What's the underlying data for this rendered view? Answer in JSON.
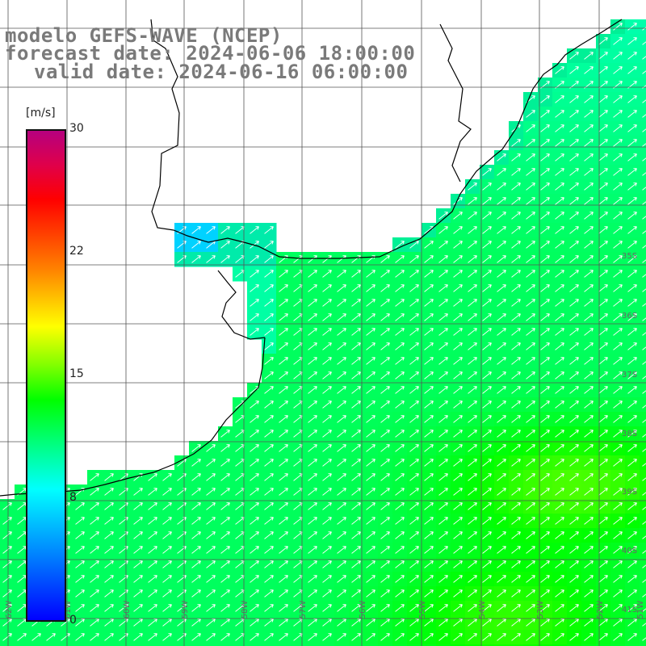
{
  "titles": {
    "line1": "modelo GEFS-WAVE (NCEP)",
    "line2": "forecast date: 2024-06-06 18:00:00",
    "line3": "valid date: 2024-06-16 06:00:00"
  },
  "colorbar": {
    "unit": "[m/s]",
    "ticks": [
      "30",
      "22",
      "15",
      "8",
      "0"
    ],
    "range": [
      0,
      30
    ],
    "stops": [
      "#0000ff",
      "#00ffff",
      "#00ff00",
      "#ffff00",
      "#ff7f00",
      "#ff0000",
      "#b5007f"
    ]
  },
  "lat_labels": [
    "35S",
    "36S",
    "37S",
    "38S",
    "39S",
    "40S",
    "41S"
  ],
  "lon_labels": [
    "62W",
    "61W",
    "60W",
    "59W",
    "58W",
    "57W",
    "56W",
    "55W",
    "54W",
    "53W",
    "52W",
    "51W"
  ],
  "wind": {
    "direction": "toward north-east",
    "typical_speed_ms": "10-14",
    "max_speed_ms": "~15"
  },
  "colors": {
    "land": "#ffffff",
    "grid": "#555555",
    "coast": "#000000",
    "arrow": "#ffffff",
    "title_text": "#7a7a7a"
  }
}
